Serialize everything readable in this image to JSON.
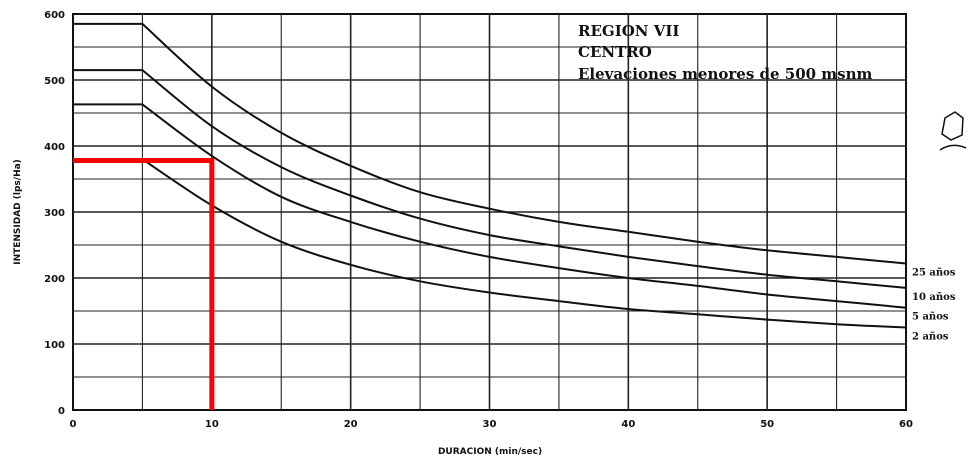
{
  "chart_data": {
    "type": "line",
    "title_lines": [
      "REGION VII",
      "CENTRO",
      "Elevaciones menores de 500 msnm"
    ],
    "xlabel": "DURACION (min/sec)",
    "ylabel": "INTENSIDAD (lps/Ha)",
    "xlim": [
      0,
      60
    ],
    "ylim": [
      0,
      600
    ],
    "x_ticks": [
      "0",
      "10",
      "20",
      "30",
      "40",
      "50",
      "60"
    ],
    "y_ticks": [
      "0",
      "100",
      "200",
      "300",
      "400",
      "500",
      "600"
    ],
    "grid": true,
    "x": [
      0,
      5,
      10,
      15,
      20,
      25,
      30,
      35,
      40,
      45,
      50,
      55,
      60
    ],
    "series": [
      {
        "name": "25 años",
        "values": [
          585,
          585,
          490,
          420,
          370,
          330,
          305,
          285,
          270,
          255,
          242,
          232,
          222
        ]
      },
      {
        "name": "10 años",
        "values": [
          515,
          515,
          430,
          368,
          325,
          290,
          265,
          248,
          232,
          218,
          205,
          195,
          185
        ]
      },
      {
        "name": "5 años",
        "values": [
          463,
          463,
          385,
          323,
          285,
          255,
          232,
          215,
          200,
          188,
          175,
          165,
          155
        ]
      },
      {
        "name": "2 años",
        "values": [
          380,
          380,
          310,
          255,
          220,
          195,
          178,
          165,
          153,
          145,
          137,
          130,
          125
        ]
      }
    ],
    "annotation": {
      "x": 10,
      "y": 378,
      "color": "#ff0000"
    }
  }
}
